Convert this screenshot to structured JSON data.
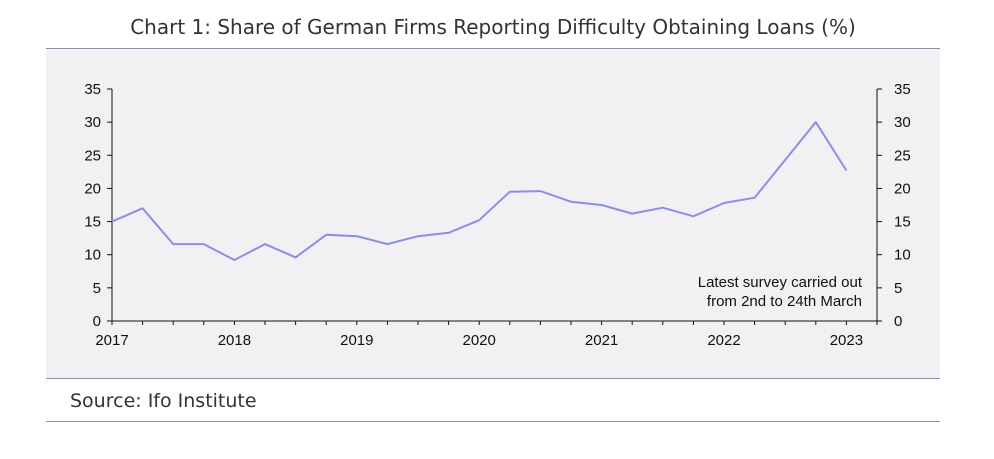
{
  "chart_data": {
    "type": "line",
    "title": "Chart 1: Share of German Firms Reporting Difficulty Obtaining Loans (%)",
    "source": "Source: Ifo Institute",
    "annotation": [
      "Latest survey carried out",
      "from 2nd to 24th March"
    ],
    "x_tick_labels": [
      "2017",
      "2018",
      "2019",
      "2020",
      "2021",
      "2022",
      "2023"
    ],
    "xlim": [
      2017,
      2023.25
    ],
    "y_ticks": [
      0,
      5,
      10,
      15,
      20,
      25,
      30,
      35
    ],
    "ylim": [
      0,
      35
    ],
    "axes": "left-and-right",
    "grid": false,
    "series": [
      {
        "color": "#8b8ee6",
        "x": [
          2017.0,
          2017.25,
          2017.5,
          2017.75,
          2018.0,
          2018.25,
          2018.5,
          2018.75,
          2019.0,
          2019.25,
          2019.5,
          2019.75,
          2020.0,
          2020.25,
          2020.5,
          2020.75,
          2021.0,
          2021.25,
          2021.5,
          2021.75,
          2022.0,
          2022.25,
          2022.5,
          2022.75,
          2023.0
        ],
        "y": [
          15.0,
          17.0,
          11.6,
          11.6,
          9.2,
          11.6,
          9.6,
          13.0,
          12.8,
          11.6,
          12.8,
          13.3,
          15.2,
          19.5,
          19.6,
          18.0,
          17.5,
          16.2,
          17.1,
          15.8,
          17.8,
          18.6,
          24.3,
          30.0,
          22.7
        ]
      }
    ]
  }
}
